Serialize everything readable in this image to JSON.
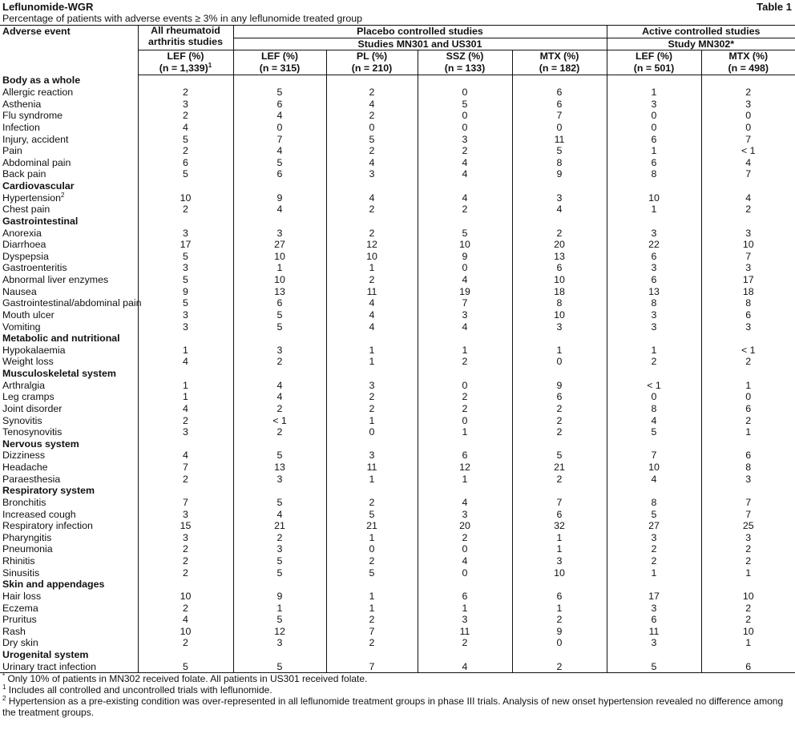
{
  "header": {
    "title": "Leflunomide-WGR",
    "table_label": "Table 1",
    "subtitle": "Percentage of patients with adverse events ≥ 3% in any leflunomide treated group"
  },
  "columns": {
    "adverse_event": "Adverse event",
    "all_ra": "All rheumatoid arthritis studies",
    "placebo_group": "Placebo controlled studies",
    "placebo_sub": "Studies MN301 and US301",
    "active_group": "Active controlled studies",
    "active_sub": "Study MN302*",
    "cols": [
      {
        "name": "LEF (%)",
        "n": "(n = 1,339)",
        "sup": "1"
      },
      {
        "name": "LEF (%)",
        "n": "(n = 315)",
        "sup": ""
      },
      {
        "name": "PL (%)",
        "n": "(n = 210)",
        "sup": ""
      },
      {
        "name": "SSZ (%)",
        "n": "(n = 133)",
        "sup": ""
      },
      {
        "name": "MTX (%)",
        "n": "(n = 182)",
        "sup": ""
      },
      {
        "name": "LEF (%)",
        "n": "(n = 501)",
        "sup": ""
      },
      {
        "name": "MTX (%)",
        "n": "(n = 498)",
        "sup": ""
      }
    ]
  },
  "rows": [
    {
      "type": "cat",
      "name": "Body as a whole"
    },
    {
      "name": "Allergic reaction",
      "v": [
        "2",
        "5",
        "2",
        "0",
        "6",
        "1",
        "2"
      ]
    },
    {
      "name": "Asthenia",
      "v": [
        "3",
        "6",
        "4",
        "5",
        "6",
        "3",
        "3"
      ]
    },
    {
      "name": "Flu syndrome",
      "v": [
        "2",
        "4",
        "2",
        "0",
        "7",
        "0",
        "0"
      ]
    },
    {
      "name": "Infection",
      "v": [
        "4",
        "0",
        "0",
        "0",
        "0",
        "0",
        "0"
      ]
    },
    {
      "name": "Injury, accident",
      "v": [
        "5",
        "7",
        "5",
        "3",
        "11",
        "6",
        "7"
      ]
    },
    {
      "name": "Pain",
      "v": [
        "2",
        "4",
        "2",
        "2",
        "5",
        "1",
        "< 1"
      ]
    },
    {
      "name": "Abdominal pain",
      "v": [
        "6",
        "5",
        "4",
        "4",
        "8",
        "6",
        "4"
      ]
    },
    {
      "name": "Back pain",
      "v": [
        "5",
        "6",
        "3",
        "4",
        "9",
        "8",
        "7"
      ]
    },
    {
      "type": "cat",
      "name": "Cardiovascular"
    },
    {
      "name": "Hypertension",
      "sup": "2",
      "v": [
        "10",
        "9",
        "4",
        "4",
        "3",
        "10",
        "4"
      ]
    },
    {
      "name": "Chest pain",
      "v": [
        "2",
        "4",
        "2",
        "2",
        "4",
        "1",
        "2"
      ]
    },
    {
      "type": "cat",
      "name": "Gastrointestinal"
    },
    {
      "name": "Anorexia",
      "v": [
        "3",
        "3",
        "2",
        "5",
        "2",
        "3",
        "3"
      ]
    },
    {
      "name": "Diarrhoea",
      "v": [
        "17",
        "27",
        "12",
        "10",
        "20",
        "22",
        "10"
      ]
    },
    {
      "name": "Dyspepsia",
      "v": [
        "5",
        "10",
        "10",
        "9",
        "13",
        "6",
        "7"
      ]
    },
    {
      "name": "Gastroenteritis",
      "v": [
        "3",
        "1",
        "1",
        "0",
        "6",
        "3",
        "3"
      ]
    },
    {
      "name": "Abnormal liver enzymes",
      "v": [
        "5",
        "10",
        "2",
        "4",
        "10",
        "6",
        "17"
      ]
    },
    {
      "name": "Nausea",
      "v": [
        "9",
        "13",
        "11",
        "19",
        "18",
        "13",
        "18"
      ]
    },
    {
      "name": "Gastrointestinal/abdominal pain",
      "v": [
        "5",
        "6",
        "4",
        "7",
        "8",
        "8",
        "8"
      ]
    },
    {
      "name": "Mouth ulcer",
      "v": [
        "3",
        "5",
        "4",
        "3",
        "10",
        "3",
        "6"
      ]
    },
    {
      "name": "Vomiting",
      "v": [
        "3",
        "5",
        "4",
        "4",
        "3",
        "3",
        "3"
      ]
    },
    {
      "type": "cat",
      "name": "Metabolic and nutritional"
    },
    {
      "name": "Hypokalaemia",
      "v": [
        "1",
        "3",
        "1",
        "1",
        "1",
        "1",
        "< 1"
      ]
    },
    {
      "name": "Weight loss",
      "v": [
        "4",
        "2",
        "1",
        "2",
        "0",
        "2",
        "2"
      ]
    },
    {
      "type": "cat",
      "name": "Musculoskeletal system"
    },
    {
      "name": "Arthralgia",
      "v": [
        "1",
        "4",
        "3",
        "0",
        "9",
        "< 1",
        "1"
      ]
    },
    {
      "name": "Leg cramps",
      "v": [
        "1",
        "4",
        "2",
        "2",
        "6",
        "0",
        "0"
      ]
    },
    {
      "name": "Joint disorder",
      "v": [
        "4",
        "2",
        "2",
        "2",
        "2",
        "8",
        "6"
      ]
    },
    {
      "name": "Synovitis",
      "v": [
        "2",
        "< 1",
        "1",
        "0",
        "2",
        "4",
        "2"
      ]
    },
    {
      "name": "Tenosynovitis",
      "v": [
        "3",
        "2",
        "0",
        "1",
        "2",
        "5",
        "1"
      ]
    },
    {
      "type": "cat",
      "name": "Nervous system"
    },
    {
      "name": "Dizziness",
      "v": [
        "4",
        "5",
        "3",
        "6",
        "5",
        "7",
        "6"
      ]
    },
    {
      "name": "Headache",
      "v": [
        "7",
        "13",
        "11",
        "12",
        "21",
        "10",
        "8"
      ]
    },
    {
      "name": "Paraesthesia",
      "v": [
        "2",
        "3",
        "1",
        "1",
        "2",
        "4",
        "3"
      ]
    },
    {
      "type": "cat",
      "name": "Respiratory system"
    },
    {
      "name": "Bronchitis",
      "v": [
        "7",
        "5",
        "2",
        "4",
        "7",
        "8",
        "7"
      ]
    },
    {
      "name": "Increased cough",
      "v": [
        "3",
        "4",
        "5",
        "3",
        "6",
        "5",
        "7"
      ]
    },
    {
      "name": "Respiratory infection",
      "v": [
        "15",
        "21",
        "21",
        "20",
        "32",
        "27",
        "25"
      ]
    },
    {
      "name": "Pharyngitis",
      "v": [
        "3",
        "2",
        "1",
        "2",
        "1",
        "3",
        "3"
      ]
    },
    {
      "name": "Pneumonia",
      "v": [
        "2",
        "3",
        "0",
        "0",
        "1",
        "2",
        "2"
      ]
    },
    {
      "name": "Rhinitis",
      "v": [
        "2",
        "5",
        "2",
        "4",
        "3",
        "2",
        "2"
      ]
    },
    {
      "name": "Sinusitis",
      "v": [
        "2",
        "5",
        "5",
        "0",
        "10",
        "1",
        "1"
      ]
    },
    {
      "type": "cat",
      "name": "Skin and appendages"
    },
    {
      "name": "Hair loss",
      "v": [
        "10",
        "9",
        "1",
        "6",
        "6",
        "17",
        "10"
      ]
    },
    {
      "name": "Eczema",
      "v": [
        "2",
        "1",
        "1",
        "1",
        "1",
        "3",
        "2"
      ]
    },
    {
      "name": "Pruritus",
      "v": [
        "4",
        "5",
        "2",
        "3",
        "2",
        "6",
        "2"
      ]
    },
    {
      "name": "Rash",
      "v": [
        "10",
        "12",
        "7",
        "11",
        "9",
        "11",
        "10"
      ]
    },
    {
      "name": "Dry skin",
      "v": [
        "2",
        "3",
        "2",
        "2",
        "0",
        "3",
        "1"
      ]
    },
    {
      "type": "cat",
      "name": "Urogenital system"
    },
    {
      "name": "Urinary tract infection",
      "v": [
        "5",
        "5",
        "7",
        "4",
        "2",
        "5",
        "6"
      ]
    }
  ],
  "footnotes": [
    {
      "mark": "*",
      "text": "Only 10% of patients in MN302 received folate. All patients in US301 received folate."
    },
    {
      "mark": "1",
      "text": "Includes all controlled and uncontrolled trials with leflunomide."
    },
    {
      "mark": "2",
      "text": "Hypertension as a pre-existing condition was over-represented in all leflunomide treatment groups in phase III trials. Analysis of new onset hypertension revealed no difference among the treatment groups."
    }
  ]
}
